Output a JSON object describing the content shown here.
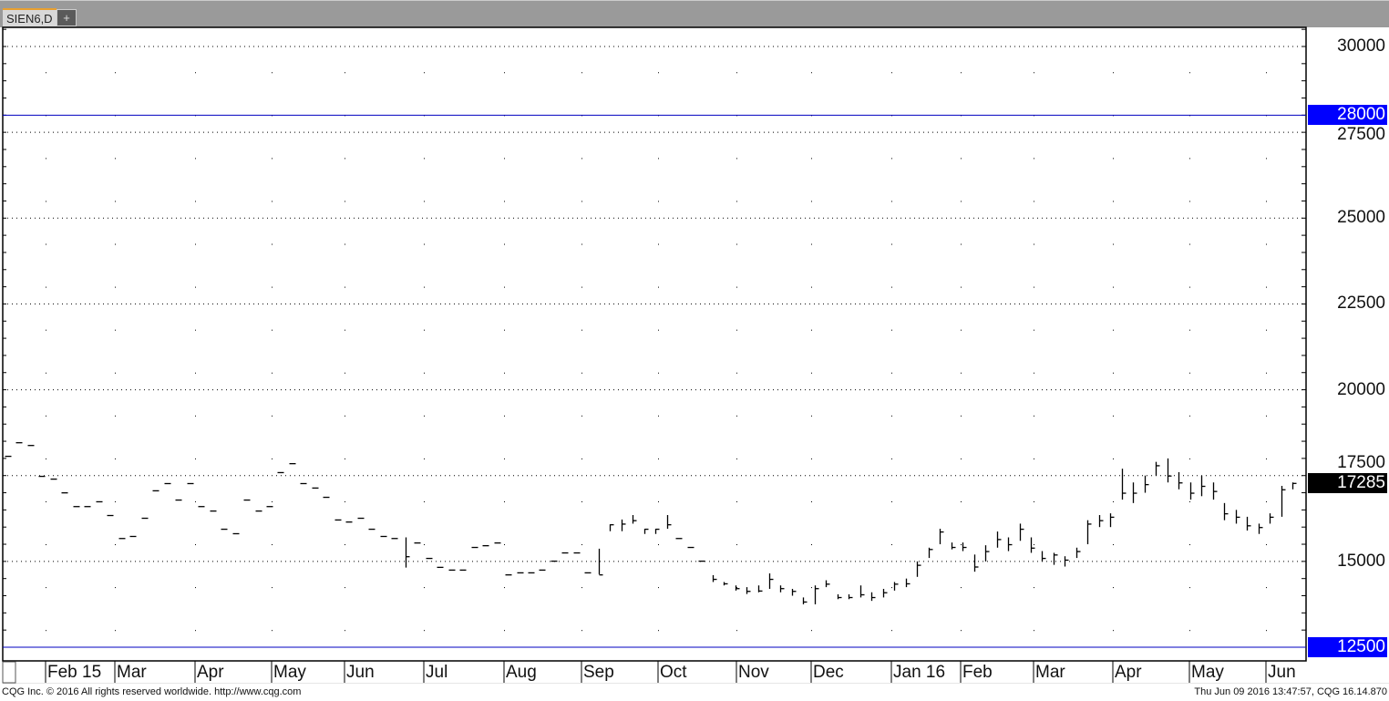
{
  "tabs": [
    {
      "label": "SIEN6,D"
    }
  ],
  "add_tab_label": "+",
  "footer": {
    "copyright": "CQG Inc. © 2016 All rights reserved worldwide. http://www.cqg.com",
    "timestamp": "Thu Jun 09 2016 13:47:57, CQG 16.14.870"
  },
  "colors": {
    "reference_line": "#0000c0",
    "reference_box": "#0000ff",
    "last_price_box": "#000000",
    "bars": "#000000"
  },
  "chart_data": {
    "type": "ohlc-bar",
    "symbol": "SIEN6,D",
    "ylim": [
      12000,
      30600
    ],
    "y_ticks": [
      "30000",
      "27500",
      "25000",
      "22500",
      "20000",
      "17500",
      "15000"
    ],
    "y_tick_values": [
      30000,
      27500,
      25000,
      22500,
      20000,
      17500,
      15000
    ],
    "x_ticks": [
      "Feb 15",
      "Mar",
      "Apr",
      "May",
      "Jun",
      "Jul",
      "Aug",
      "Sep",
      "Oct",
      "Nov",
      "Dec",
      "Jan 16",
      "Feb",
      "Mar",
      "Apr",
      "May",
      "Jun"
    ],
    "grid": "dotted",
    "reference_lines": [
      {
        "value": 28000,
        "label": "28000"
      },
      {
        "value": 12500,
        "label": "12500"
      }
    ],
    "last_price": {
      "value": 17285,
      "label": "17285"
    },
    "bars_hlc": [
      [
        18074,
        18074,
        18074
      ],
      [
        18470,
        18470,
        18470
      ],
      [
        18390,
        18390,
        18390
      ],
      [
        17490,
        17490,
        17490
      ],
      [
        17410,
        17410,
        17410
      ],
      [
        17010,
        17010,
        17010
      ],
      [
        16610,
        16610,
        16610
      ],
      [
        16610,
        16610,
        16610
      ],
      [
        16750,
        16750,
        16750
      ],
      [
        16350,
        16350,
        16350
      ],
      [
        15680,
        15680,
        15680
      ],
      [
        15740,
        15740,
        15740
      ],
      [
        16270,
        16270,
        16270
      ],
      [
        17070,
        17070,
        17070
      ],
      [
        17280,
        17280,
        17280
      ],
      [
        16800,
        16800,
        16800
      ],
      [
        17280,
        17280,
        17280
      ],
      [
        16610,
        16610,
        16610
      ],
      [
        16480,
        16480,
        16480
      ],
      [
        15950,
        15950,
        15950
      ],
      [
        15820,
        15820,
        15820
      ],
      [
        16800,
        16800,
        16800
      ],
      [
        16480,
        16480,
        16480
      ],
      [
        16610,
        16610,
        16610
      ],
      [
        17600,
        17600,
        17600
      ],
      [
        17860,
        17860,
        17860
      ],
      [
        17280,
        17280,
        17280
      ],
      [
        17150,
        17150,
        17150
      ],
      [
        16880,
        16880,
        16880
      ],
      [
        16220,
        16220,
        16220
      ],
      [
        16160,
        16160,
        16160
      ],
      [
        16270,
        16270,
        16270
      ],
      [
        15950,
        15950,
        15950
      ],
      [
        15740,
        15740,
        15740
      ],
      [
        15680,
        15680,
        15680
      ],
      [
        15700,
        14820,
        15150
      ],
      [
        15550,
        15550,
        15550
      ],
      [
        15100,
        15100,
        15100
      ],
      [
        14840,
        14840,
        14840
      ],
      [
        14760,
        14760,
        14760
      ],
      [
        14760,
        14760,
        14760
      ],
      [
        15420,
        15420,
        15420
      ],
      [
        15470,
        15470,
        15470
      ],
      [
        15550,
        15550,
        15550
      ],
      [
        14620,
        14620,
        14620
      ],
      [
        14680,
        14680,
        14680
      ],
      [
        14680,
        14680,
        14680
      ],
      [
        14760,
        14760,
        14760
      ],
      [
        15020,
        15020,
        15020
      ],
      [
        15260,
        15260,
        15260
      ],
      [
        15260,
        15260,
        15260
      ],
      [
        14680,
        14680,
        14680
      ],
      [
        15370,
        14620,
        14620
      ],
      [
        16080,
        15880,
        16080
      ],
      [
        16220,
        15880,
        16100
      ],
      [
        16350,
        16100,
        16200
      ],
      [
        15950,
        15800,
        15950
      ],
      [
        15950,
        15800,
        15950
      ],
      [
        16350,
        15950,
        16080
      ],
      [
        15680,
        15680,
        15680
      ],
      [
        15420,
        15420,
        15420
      ],
      [
        15020,
        15020,
        15020
      ],
      [
        14600,
        14400,
        14490
      ],
      [
        14400,
        14300,
        14360
      ],
      [
        14300,
        14150,
        14220
      ],
      [
        14250,
        14050,
        14140
      ],
      [
        14300,
        14100,
        14150
      ],
      [
        14650,
        14200,
        14490
      ],
      [
        14300,
        14100,
        14220
      ],
      [
        14200,
        14000,
        14140
      ],
      [
        13950,
        13750,
        13830
      ],
      [
        14300,
        13750,
        14220
      ],
      [
        14450,
        14250,
        14350
      ],
      [
        14040,
        13900,
        13960
      ],
      [
        14040,
        13900,
        13960
      ],
      [
        14300,
        13950,
        14040
      ],
      [
        14100,
        13850,
        13960
      ],
      [
        14200,
        13950,
        14100
      ],
      [
        14400,
        14150,
        14350
      ],
      [
        14500,
        14250,
        14360
      ],
      [
        15000,
        14550,
        14900
      ],
      [
        15400,
        15100,
        15360
      ],
      [
        15950,
        15500,
        15870
      ],
      [
        15550,
        15350,
        15420
      ],
      [
        15550,
        15300,
        15420
      ],
      [
        15200,
        14700,
        14850
      ],
      [
        15470,
        15000,
        15300
      ],
      [
        15870,
        15400,
        15650
      ],
      [
        15700,
        15300,
        15500
      ],
      [
        16100,
        15600,
        15950
      ],
      [
        15700,
        15250,
        15400
      ],
      [
        15300,
        15000,
        15100
      ],
      [
        15250,
        14900,
        15200
      ],
      [
        15150,
        14850,
        15050
      ],
      [
        15400,
        15100,
        15300
      ],
      [
        16200,
        15500,
        16100
      ],
      [
        16350,
        16000,
        16200
      ],
      [
        16400,
        16000,
        16300
      ],
      [
        17700,
        16800,
        17000
      ],
      [
        17300,
        16700,
        17000
      ],
      [
        17500,
        17000,
        17250
      ],
      [
        17900,
        17500,
        17800
      ],
      [
        18000,
        17300,
        17500
      ],
      [
        17600,
        17100,
        17300
      ],
      [
        17300,
        16800,
        17000
      ],
      [
        17500,
        16900,
        17200
      ],
      [
        17300,
        16800,
        17050
      ],
      [
        16700,
        16200,
        16400
      ],
      [
        16500,
        16100,
        16300
      ],
      [
        16300,
        15900,
        16050
      ],
      [
        16100,
        15800,
        16000
      ],
      [
        16400,
        16100,
        16300
      ],
      [
        17200,
        16300,
        17100
      ],
      [
        17300,
        17100,
        17285
      ]
    ]
  }
}
